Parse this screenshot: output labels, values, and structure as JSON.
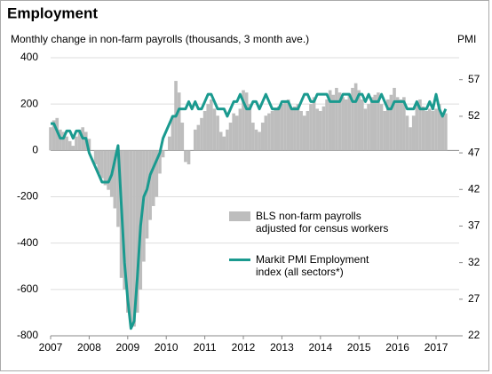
{
  "chart_data": {
    "type": "bar",
    "title": "Employment",
    "y_label": "Monthly change in non-farm payrolls (thousands, 3 month ave.)",
    "y2_label": "PMI",
    "categories": [
      "2007",
      null,
      null,
      null,
      null,
      null,
      null,
      null,
      null,
      null,
      null,
      null,
      "2008",
      null,
      null,
      null,
      null,
      null,
      null,
      null,
      null,
      null,
      null,
      null,
      "2009",
      null,
      null,
      null,
      null,
      null,
      null,
      null,
      null,
      null,
      null,
      null,
      "2010",
      null,
      null,
      null,
      null,
      null,
      null,
      null,
      null,
      null,
      null,
      null,
      "2011",
      null,
      null,
      null,
      null,
      null,
      null,
      null,
      null,
      null,
      null,
      null,
      "2012",
      null,
      null,
      null,
      null,
      null,
      null,
      null,
      null,
      null,
      null,
      null,
      "2013",
      null,
      null,
      null,
      null,
      null,
      null,
      null,
      null,
      null,
      null,
      null,
      "2014",
      null,
      null,
      null,
      null,
      null,
      null,
      null,
      null,
      null,
      null,
      null,
      "2015",
      null,
      null,
      null,
      null,
      null,
      null,
      null,
      null,
      null,
      null,
      null,
      "2016",
      null,
      null,
      null,
      null,
      null,
      null,
      null,
      null,
      null,
      null,
      null,
      "2017",
      null,
      null,
      null
    ],
    "series": [
      {
        "name": "BLS non-farm payrolls adjusted for census workers",
        "type": "bar",
        "color": "#bdbdbd",
        "values": [
          100,
          130,
          140,
          90,
          80,
          60,
          40,
          20,
          60,
          90,
          100,
          80,
          50,
          0,
          -60,
          -100,
          -120,
          -150,
          -170,
          -200,
          -250,
          -330,
          -550,
          -600,
          -700,
          -750,
          -760,
          -700,
          -600,
          -480,
          -380,
          -300,
          -240,
          -200,
          -100,
          -30,
          0,
          60,
          150,
          300,
          250,
          120,
          -50,
          -60,
          0,
          90,
          110,
          140,
          170,
          200,
          220,
          180,
          150,
          80,
          60,
          90,
          120,
          160,
          150,
          180,
          260,
          250,
          200,
          120,
          90,
          80,
          120,
          150,
          160,
          170,
          180,
          190,
          200,
          210,
          220,
          180,
          190,
          200,
          170,
          150,
          170,
          200,
          230,
          180,
          170,
          190,
          220,
          260,
          240,
          270,
          250,
          230,
          220,
          240,
          270,
          290,
          260,
          220,
          180,
          200,
          230,
          240,
          250,
          200,
          170,
          220,
          240,
          270,
          230,
          220,
          230,
          150,
          100,
          150,
          200,
          220,
          190,
          170,
          180,
          170,
          180,
          200,
          150,
          160
        ]
      },
      {
        "name": "Markit PMI Employment index (all sectors*)",
        "type": "line",
        "color": "#1a9a8f",
        "axis": "y2",
        "values": [
          51,
          51,
          50,
          49,
          49,
          50,
          50,
          49,
          50,
          50,
          49,
          49,
          47,
          46,
          45,
          44,
          43,
          43,
          43,
          44,
          46,
          48,
          40,
          32,
          27,
          23,
          24,
          30,
          37,
          41,
          42,
          44,
          45,
          46,
          47,
          49,
          50,
          51,
          52,
          52,
          53,
          53,
          53,
          54,
          53,
          54,
          53,
          53,
          54,
          55,
          55,
          54,
          53,
          53,
          53,
          52,
          53,
          54,
          54,
          55,
          54,
          53,
          53,
          54,
          54,
          53,
          54,
          55,
          54,
          53,
          53,
          53,
          54,
          54,
          54,
          53,
          53,
          53,
          54,
          55,
          55,
          54,
          54,
          55,
          55,
          55,
          55,
          54,
          54,
          54,
          54,
          55,
          55,
          55,
          54,
          54,
          55,
          55,
          54,
          55,
          54,
          54,
          54,
          55,
          54,
          53,
          53,
          54,
          54,
          54,
          54,
          53,
          53,
          53,
          54,
          53,
          53,
          53,
          54,
          53,
          55,
          53,
          52,
          53
        ]
      }
    ],
    "ylim": [
      -800,
      400
    ],
    "yticks": [
      -800,
      -600,
      -400,
      -200,
      0,
      200,
      400
    ],
    "y2lim": [
      22,
      60
    ],
    "y2ticks": [
      22,
      27,
      32,
      37,
      42,
      47,
      52,
      57
    ],
    "grid": true
  }
}
